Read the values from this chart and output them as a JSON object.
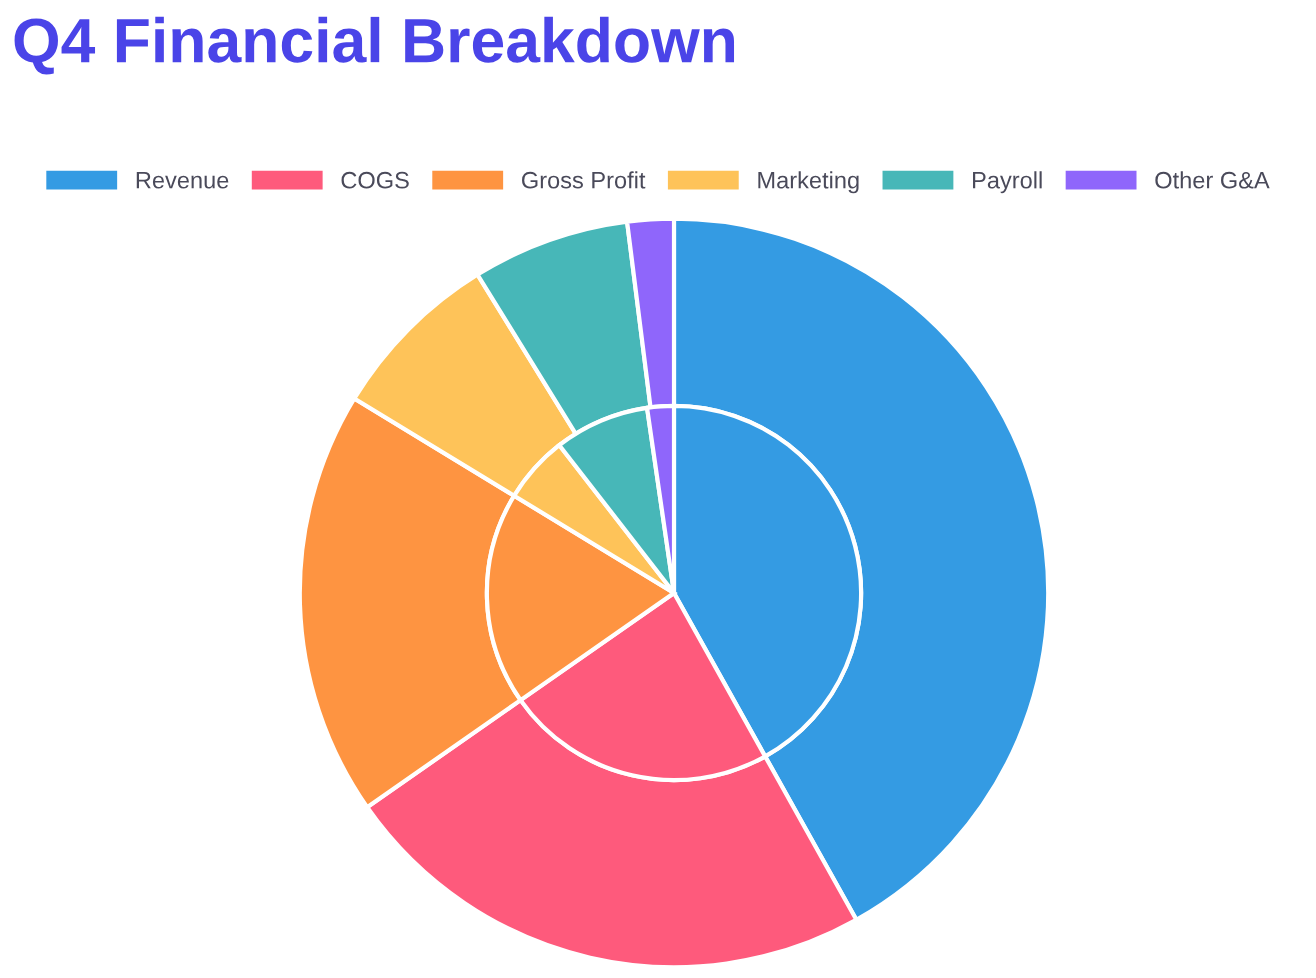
{
  "chart_data": {
    "type": "pie",
    "title": "Q4 Financial Breakdown",
    "categories": [
      "Revenue",
      "COGS",
      "Gross Profit",
      "Marketing",
      "Payroll",
      "Other G&A"
    ],
    "colors": [
      "#349be3",
      "#fe5a7c",
      "#fe9441",
      "#fec359",
      "#47b7b8",
      "#8f66fb"
    ],
    "series": [
      {
        "values": [
          41.9,
          23.4,
          18.4,
          7.5,
          6.8,
          2.0
        ]
      },
      {
        "values": [
          41.9,
          23.4,
          18.4,
          5.8,
          8.2,
          2.3
        ]
      }
    ],
    "legend": "top"
  }
}
